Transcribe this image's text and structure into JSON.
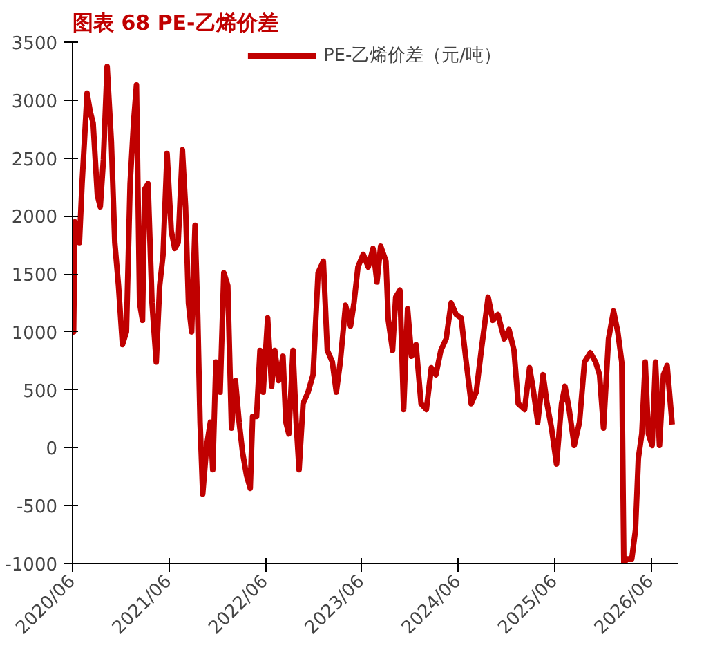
{
  "chart_data": {
    "type": "line",
    "title": "图表 68 PE-乙烯价差",
    "legend": "top",
    "grid": false,
    "line_style": "solid",
    "marker": "none",
    "xlim": [
      "2020-06-01",
      "2026-09-10"
    ],
    "xticks": [
      {
        "value": "2020-06-01",
        "label": "2020/06"
      },
      {
        "value": "2021-06-01",
        "label": "2021/06"
      },
      {
        "value": "2022-06-01",
        "label": "2022/06"
      },
      {
        "value": "2023-06-01",
        "label": "2023/06"
      },
      {
        "value": "2024-06-01",
        "label": "2024/06"
      },
      {
        "value": "2025-06-01",
        "label": "2025/06"
      },
      {
        "value": "2026-06-01",
        "label": "2026/06"
      }
    ],
    "ylim": [
      -1000,
      3500
    ],
    "yticks": [
      -1000,
      -500,
      0,
      500,
      1000,
      1500,
      2000,
      2500,
      3000,
      3500
    ],
    "series": [
      {
        "name": "PE-乙烯价差（元/吨）",
        "color": "#c00000",
        "x": [
          "2020-06-01",
          "2020-06-05",
          "2020-06-10",
          "2020-06-22",
          "2020-06-27",
          "2020-07-07",
          "2020-07-26",
          "2020-08-07",
          "2020-08-18",
          "2020-09-03",
          "2020-09-14",
          "2020-09-26",
          "2020-10-10",
          "2020-10-26",
          "2020-11-08",
          "2020-11-22",
          "2020-12-07",
          "2020-12-22",
          "2021-01-05",
          "2021-01-18",
          "2021-01-29",
          "2021-02-10",
          "2021-02-21",
          "2021-03-01",
          "2021-03-14",
          "2021-03-29",
          "2021-04-14",
          "2021-04-27",
          "2021-05-10",
          "2021-05-25",
          "2021-06-10",
          "2021-06-23",
          "2021-07-06",
          "2021-07-22",
          "2021-08-03",
          "2021-08-14",
          "2021-08-26",
          "2021-09-08",
          "2021-09-18",
          "2021-09-27",
          "2021-10-07",
          "2021-10-22",
          "2021-11-05",
          "2021-11-14",
          "2021-11-26",
          "2021-12-12",
          "2021-12-26",
          "2022-01-10",
          "2022-01-24",
          "2022-02-08",
          "2022-02-22",
          "2022-03-07",
          "2022-03-22",
          "2022-04-05",
          "2022-04-14",
          "2022-04-29",
          "2022-05-12",
          "2022-05-24",
          "2022-06-10",
          "2022-06-25",
          "2022-07-07",
          "2022-07-22",
          "2022-08-07",
          "2022-08-18",
          "2022-08-29",
          "2022-09-14",
          "2022-09-26",
          "2022-10-07",
          "2022-10-22",
          "2022-11-10",
          "2022-11-29",
          "2022-12-18",
          "2023-01-07",
          "2023-01-22",
          "2023-02-10",
          "2023-02-25",
          "2023-03-12",
          "2023-04-01",
          "2023-04-20",
          "2023-05-03",
          "2023-05-18",
          "2023-06-07",
          "2023-06-26",
          "2023-07-14",
          "2023-07-29",
          "2023-08-12",
          "2023-09-01",
          "2023-09-10",
          "2023-09-26",
          "2023-10-08",
          "2023-10-24",
          "2023-11-07",
          "2023-11-22",
          "2023-12-07",
          "2023-12-24",
          "2024-01-12",
          "2024-02-01",
          "2024-02-20",
          "2024-03-08",
          "2024-03-27",
          "2024-04-16",
          "2024-05-05",
          "2024-05-24",
          "2024-06-12",
          "2024-07-01",
          "2024-07-20",
          "2024-08-08",
          "2024-08-27",
          "2024-09-22",
          "2024-10-10",
          "2024-10-29",
          "2024-11-22",
          "2024-12-10",
          "2024-12-29",
          "2025-01-14",
          "2025-02-07",
          "2025-02-26",
          "2025-03-10",
          "2025-03-29",
          "2025-04-18",
          "2025-05-03",
          "2025-05-20",
          "2025-06-08",
          "2025-06-27",
          "2025-07-10",
          "2025-07-26",
          "2025-08-14",
          "2025-09-03",
          "2025-09-22",
          "2025-10-14",
          "2025-11-03",
          "2025-11-18",
          "2025-12-03",
          "2025-12-22",
          "2026-01-10",
          "2026-01-26",
          "2026-02-10",
          "2026-02-18",
          "2026-03-01",
          "2026-03-20",
          "2026-04-03",
          "2026-04-14",
          "2026-04-27",
          "2026-05-10",
          "2026-05-22",
          "2026-06-05",
          "2026-06-18",
          "2026-07-03",
          "2026-07-18",
          "2026-08-01",
          "2026-08-20"
        ],
        "values": [
          1150,
          1000,
          1950,
          1870,
          1770,
          2280,
          3060,
          2900,
          2800,
          2180,
          2080,
          2490,
          3290,
          2640,
          1770,
          1400,
          890,
          1000,
          2280,
          2800,
          3130,
          1250,
          1100,
          2230,
          2280,
          1250,
          740,
          1400,
          1670,
          2540,
          1870,
          1720,
          1770,
          2570,
          2080,
          1250,
          1000,
          1920,
          1150,
          220,
          -400,
          20,
          220,
          -190,
          740,
          480,
          1510,
          1400,
          170,
          580,
          220,
          -40,
          -240,
          -350,
          270,
          270,
          840,
          480,
          1120,
          530,
          840,
          580,
          790,
          220,
          120,
          840,
          220,
          -190,
          380,
          480,
          630,
          1510,
          1610,
          840,
          740,
          480,
          740,
          1230,
          1050,
          1250,
          1560,
          1670,
          1560,
          1720,
          1430,
          1740,
          1610,
          1100,
          840,
          1300,
          1360,
          330,
          1200,
          790,
          890,
          380,
          330,
          690,
          630,
          840,
          940,
          1250,
          1150,
          1120,
          740,
          380,
          480,
          840,
          1300,
          1100,
          1150,
          940,
          1020,
          840,
          380,
          330,
          690,
          530,
          220,
          630,
          380,
          170,
          -140,
          380,
          530,
          330,
          20,
          220,
          740,
          820,
          740,
          630,
          170,
          940,
          1180,
          1000,
          740,
          -1000,
          -960,
          -960,
          -710,
          -90,
          120,
          740,
          120,
          20,
          740,
          20,
          630,
          710,
          200
        ]
      }
    ]
  }
}
